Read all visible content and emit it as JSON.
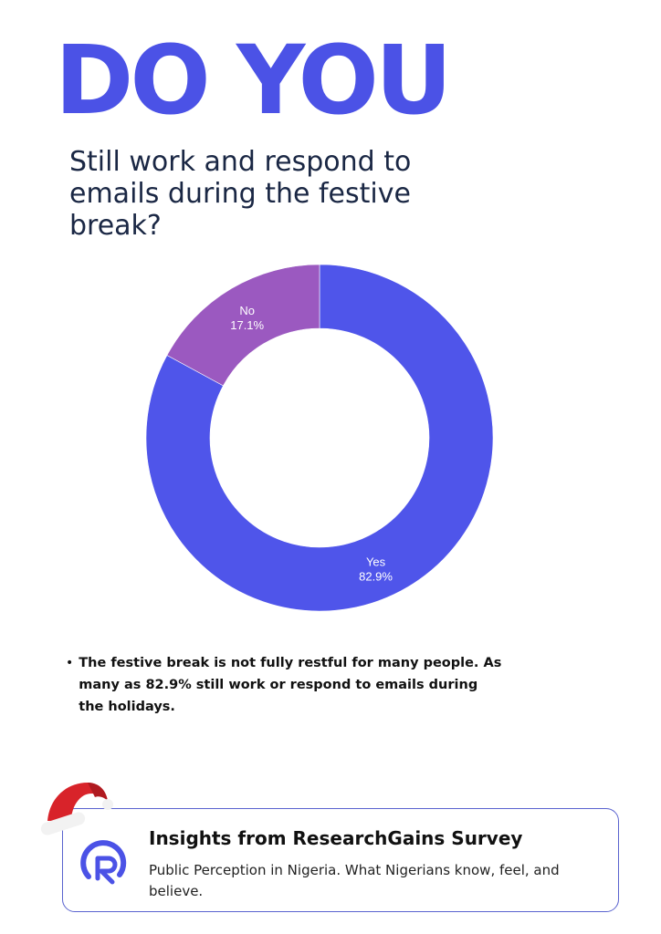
{
  "headline": "DO YOU",
  "question": "Still work and respond to emails during the festive break?",
  "colors": {
    "accent": "#4b52e6",
    "yes": "#4f55ea",
    "no": "#9b59c0",
    "question_text": "#1a2744",
    "card_border": "#5a63cf"
  },
  "chart_data": {
    "type": "pie",
    "style": "donut",
    "slices": [
      {
        "label": "Yes",
        "value": 82.9,
        "display": "82.9%"
      },
      {
        "label": "No",
        "value": 17.1,
        "display": "17.1%"
      }
    ]
  },
  "insight": {
    "bullet": "•",
    "text": "The festive break is not fully restful for many people. As many as 82.9% still work or respond to emails during the holidays."
  },
  "footer": {
    "title": "Insights from ResearchGains Survey",
    "subtitle": "Public Perception in Nigeria. What Nigerians know, feel, and believe.",
    "logo_icon": "researchgains-r-logo-icon",
    "decoration_icon": "santa-hat-icon"
  }
}
